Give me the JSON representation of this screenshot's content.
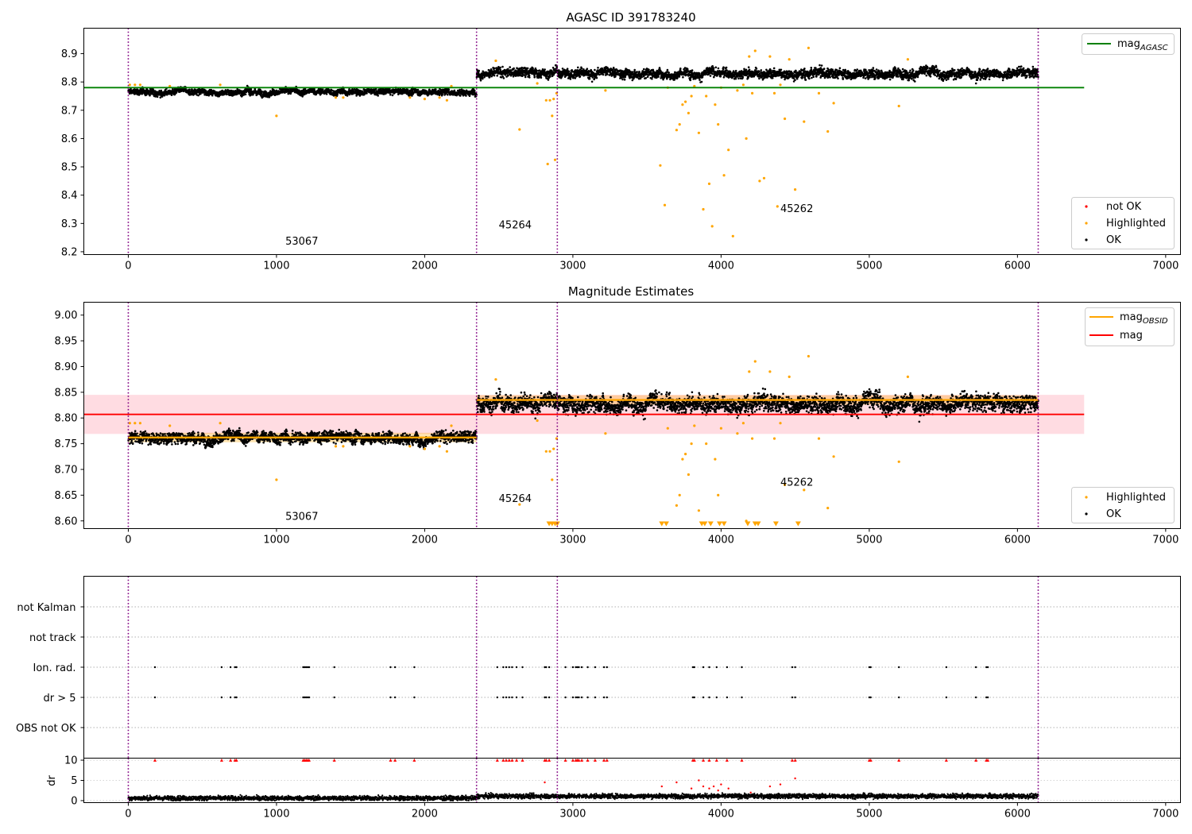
{
  "chart_data": [
    {
      "type": "scatter",
      "title": "AGASC ID 391783240",
      "xlim": [
        -300,
        7100
      ],
      "ylim": [
        8.19,
        8.99
      ],
      "xticks": [
        0,
        1000,
        2000,
        3000,
        4000,
        5000,
        6000,
        7000
      ],
      "yticks": [
        8.2,
        8.3,
        8.4,
        8.5,
        8.6,
        8.7,
        8.8,
        8.9
      ],
      "vlines": [
        0,
        2350,
        2895,
        6140
      ],
      "hlines": [
        {
          "name": "mag_AGASC",
          "y": 8.78,
          "x": [
            0,
            6450
          ],
          "color": "#008000"
        }
      ],
      "segments": [
        {
          "x": [
            0,
            2350
          ],
          "mean": 8.765,
          "scatter": 0.012
        },
        {
          "x": [
            2350,
            6140
          ],
          "mean": 8.832,
          "scatter": 0.018
        }
      ],
      "annotations": [
        {
          "text": "53067",
          "x": 1060,
          "y": 8.225
        },
        {
          "text": "45264",
          "x": 2500,
          "y": 8.282
        },
        {
          "text": "45262",
          "x": 4400,
          "y": 8.34
        }
      ],
      "highlighted": {
        "x": [
          10,
          45,
          80,
          280,
          620,
          1000,
          1400,
          1450,
          1900,
          2000,
          2100,
          2150,
          2180,
          2480,
          2640,
          2760,
          2820,
          2830,
          2845,
          2860,
          2870,
          2880,
          2890,
          3220,
          3590,
          3620,
          3640,
          3700,
          3720,
          3740,
          3760,
          3780,
          3800,
          3820,
          3850,
          3880,
          3900,
          3920,
          3940,
          3960,
          3980,
          4000,
          4020,
          4050,
          4080,
          4110,
          4150,
          4170,
          4190,
          4210,
          4230,
          4260,
          4290,
          4330,
          4360,
          4380,
          4400,
          4430,
          4460,
          4500,
          4560,
          4590,
          4660,
          4720,
          4760,
          5200,
          5260
        ],
        "y": [
          8.79,
          8.79,
          8.79,
          8.785,
          8.79,
          8.68,
          8.745,
          8.745,
          8.745,
          8.74,
          8.745,
          8.735,
          8.785,
          8.875,
          8.632,
          8.795,
          8.735,
          8.51,
          8.735,
          8.68,
          8.74,
          8.525,
          8.76,
          8.77,
          8.505,
          8.365,
          8.78,
          8.63,
          8.65,
          8.72,
          8.73,
          8.69,
          8.75,
          8.785,
          8.62,
          8.35,
          8.75,
          8.44,
          8.29,
          8.72,
          8.65,
          8.78,
          8.47,
          8.56,
          8.255,
          8.77,
          8.79,
          8.6,
          8.89,
          8.76,
          8.91,
          8.45,
          8.46,
          8.89,
          8.76,
          8.36,
          8.79,
          8.67,
          8.88,
          8.42,
          8.66,
          8.92,
          8.76,
          8.625,
          8.725,
          8.715,
          8.88
        ]
      },
      "legend_top": {
        "entries": [
          "mag_AGASC"
        ],
        "placement": "top-right"
      },
      "legend_bottom": {
        "entries": [
          "not OK",
          "Highlighted",
          "OK"
        ],
        "placement": "bottom-right"
      }
    },
    {
      "type": "scatter",
      "title": "Magnitude Estimates",
      "xlim": [
        -300,
        7100
      ],
      "ylim": [
        8.585,
        9.025
      ],
      "xticks": [
        0,
        1000,
        2000,
        3000,
        4000,
        5000,
        6000,
        7000
      ],
      "yticks": [
        8.6,
        8.65,
        8.7,
        8.75,
        8.8,
        8.85,
        8.9,
        8.95,
        9.0
      ],
      "vlines": [
        0,
        2350,
        2895,
        6140
      ],
      "mag_line": {
        "name": "mag",
        "y": 8.807,
        "band": [
          8.769,
          8.845
        ],
        "x": [
          0,
          6450
        ]
      },
      "obsid_lines": [
        {
          "x": [
            0,
            2350
          ],
          "y": 8.762
        },
        {
          "x": [
            2350,
            6140
          ],
          "y": 8.835
        }
      ],
      "below_range_markers_x": [
        2840,
        2860,
        2880,
        2895,
        3600,
        3630,
        3870,
        3890,
        3930,
        3990,
        4020,
        4180,
        4230,
        4250,
        4370,
        4520
      ],
      "annotations": [
        {
          "text": "53067",
          "x": 1060,
          "y": 8.602
        },
        {
          "text": "45264",
          "x": 2500,
          "y": 8.637
        },
        {
          "text": "45262",
          "x": 4400,
          "y": 8.668
        }
      ],
      "legend_top": {
        "entries": [
          "mag_OBSID",
          "mag"
        ],
        "placement": "top-right"
      },
      "legend_bottom": {
        "entries": [
          "Highlighted",
          "OK"
        ],
        "placement": "bottom-right"
      }
    },
    {
      "type": "scatter",
      "xlim": [
        -300,
        7100
      ],
      "categories": [
        "not Kalman",
        "not track",
        "Ion. rad.",
        "dr > 5",
        "OBS not OK"
      ],
      "xticks": [
        0,
        1000,
        2000,
        3000,
        4000,
        5000,
        6000,
        7000
      ],
      "vlines": [
        0,
        2350,
        2895,
        6140
      ],
      "flag_x": [
        180,
        630,
        690,
        720,
        730,
        1180,
        1190,
        1200,
        1210,
        1220,
        1390,
        1770,
        1800,
        1930,
        2490,
        2530,
        2550,
        2570,
        2590,
        2620,
        2660,
        2810,
        2820,
        2840,
        2950,
        3000,
        3020,
        3030,
        3040,
        3060,
        3100,
        3150,
        3210,
        3230,
        3810,
        3820,
        3880,
        3920,
        3970,
        4040,
        4140,
        4480,
        4500,
        5000,
        5010,
        5200,
        5520,
        5720,
        5790,
        5800
      ],
      "flagged_rows": [
        "Ion. rad.",
        "dr > 5"
      ]
    },
    {
      "type": "scatter",
      "ylabel": "dr",
      "xlim": [
        -300,
        7100
      ],
      "ylim": [
        -0.5,
        10.5
      ],
      "yticks": [
        0,
        5,
        10
      ],
      "xticks": [
        0,
        1000,
        2000,
        3000,
        4000,
        5000,
        6000,
        7000
      ],
      "vlines": [
        0,
        2350,
        2895,
        6140
      ],
      "flag_row_y": 10,
      "flag_x": [
        180,
        630,
        690,
        720,
        730,
        1180,
        1190,
        1200,
        1210,
        1220,
        1390,
        1770,
        1800,
        1930,
        2490,
        2530,
        2550,
        2570,
        2590,
        2620,
        2660,
        2810,
        2820,
        2840,
        2950,
        3000,
        3020,
        3030,
        3040,
        3060,
        3100,
        3150,
        3210,
        3230,
        3810,
        3820,
        3880,
        3920,
        3970,
        4040,
        4140,
        4480,
        4500,
        5000,
        5010,
        5200,
        5520,
        5720,
        5790,
        5800
      ],
      "red_points": {
        "x": [
          2810,
          3600,
          3700,
          3800,
          3850,
          3880,
          3920,
          3950,
          3980,
          4000,
          4050,
          4200,
          4330,
          4400,
          4500
        ],
        "y": [
          4.5,
          3.5,
          4.5,
          3.0,
          5.0,
          3.5,
          3.0,
          3.5,
          2.5,
          4.0,
          3.0,
          2.0,
          3.5,
          4.0,
          5.5
        ]
      },
      "baseline": {
        "x": [
          0,
          6140
        ],
        "mean": 0.6,
        "scatter": 0.4
      }
    }
  ],
  "labels": {
    "title1": "AGASC ID 391783240",
    "title2": "Magnitude Estimates",
    "ylabel4": "dr",
    "leg1_mag": "mag",
    "leg1_sub": "AGASC",
    "leg1_notok": "not OK",
    "leg1_high": "Highlighted",
    "leg1_ok": "OK",
    "leg2_mag": "mag",
    "leg2_sub": "OBSID",
    "leg2_mag2": "mag",
    "leg2_high": "Highlighted",
    "leg2_ok": "OK"
  },
  "colors": {
    "ok": "#000000",
    "highlighted": "#ffa500",
    "not_ok": "#ff0000",
    "vline": "#800080",
    "agasc": "#008000",
    "mag": "#ff0000",
    "band": "#ffc0cb",
    "obsid": "#ffa500"
  }
}
